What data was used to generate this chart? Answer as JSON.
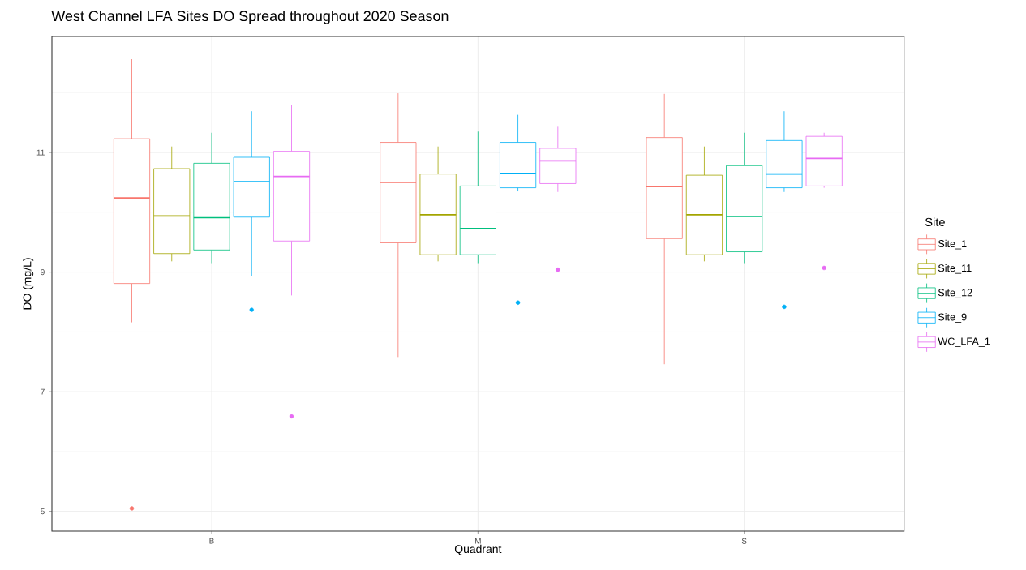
{
  "chart_data": {
    "type": "box",
    "title": "West Channel LFA Sites DO Spread throughout 2020 Season",
    "xlabel": "Quadrant",
    "ylabel": "DO (mg/L)",
    "legend_title": "Site",
    "legend": "right",
    "grid": true,
    "categories": [
      "B",
      "M",
      "S"
    ],
    "ylim": [
      4.67,
      12.94
    ],
    "yticks": [
      5,
      {
        "value": 6,
        "label": null
      },
      7,
      {
        "value": 8,
        "label": null
      },
      9,
      {
        "value": 10,
        "label": null
      },
      11,
      {
        "value": 12,
        "label": null
      }
    ],
    "series": [
      {
        "name": "Site_1",
        "color": "#F8766D",
        "boxes": [
          {
            "low": 8.16,
            "q1": 8.81,
            "median": 10.24,
            "q3": 11.23,
            "high": 12.56,
            "outliers": [
              5.05
            ]
          },
          {
            "low": 7.58,
            "q1": 9.49,
            "median": 10.5,
            "q3": 11.17,
            "high": 11.99
          },
          {
            "low": 7.46,
            "q1": 9.56,
            "median": 10.43,
            "q3": 11.25,
            "high": 11.98
          }
        ]
      },
      {
        "name": "Site_11",
        "color": "#A3A500",
        "boxes": [
          {
            "low": 9.18,
            "q1": 9.31,
            "median": 9.94,
            "q3": 10.73,
            "high": 11.1
          },
          {
            "low": 9.18,
            "q1": 9.29,
            "median": 9.96,
            "q3": 10.64,
            "high": 11.1
          },
          {
            "low": 9.18,
            "q1": 9.29,
            "median": 9.96,
            "q3": 10.62,
            "high": 11.1
          }
        ]
      },
      {
        "name": "Site_12",
        "color": "#00BF7D",
        "boxes": [
          {
            "low": 9.15,
            "q1": 9.37,
            "median": 9.91,
            "q3": 10.82,
            "high": 11.33
          },
          {
            "low": 9.15,
            "q1": 9.29,
            "median": 9.73,
            "q3": 10.44,
            "high": 11.35
          },
          {
            "low": 9.15,
            "q1": 9.34,
            "median": 9.93,
            "q3": 10.78,
            "high": 11.33
          }
        ]
      },
      {
        "name": "Site_9",
        "color": "#00B0F6",
        "boxes": [
          {
            "low": 8.94,
            "q1": 9.92,
            "median": 10.51,
            "q3": 10.92,
            "high": 11.69,
            "outliers": [
              8.37
            ]
          },
          {
            "low": 10.35,
            "q1": 10.41,
            "median": 10.65,
            "q3": 11.17,
            "high": 11.63,
            "outliers": [
              8.49
            ]
          },
          {
            "low": 10.34,
            "q1": 10.41,
            "median": 10.64,
            "q3": 11.2,
            "high": 11.69,
            "outliers": [
              8.42
            ]
          }
        ]
      },
      {
        "name": "WC_LFA_1",
        "color": "#E76BF3",
        "boxes": [
          {
            "low": 8.61,
            "q1": 9.52,
            "median": 10.6,
            "q3": 11.02,
            "high": 11.79,
            "outliers": [
              6.59
            ]
          },
          {
            "low": 10.34,
            "q1": 10.48,
            "median": 10.86,
            "q3": 11.07,
            "high": 11.43,
            "outliers": [
              9.04
            ]
          },
          {
            "low": 10.41,
            "q1": 10.44,
            "median": 10.9,
            "q3": 11.27,
            "high": 11.33,
            "outliers": [
              9.07
            ]
          }
        ]
      }
    ]
  }
}
